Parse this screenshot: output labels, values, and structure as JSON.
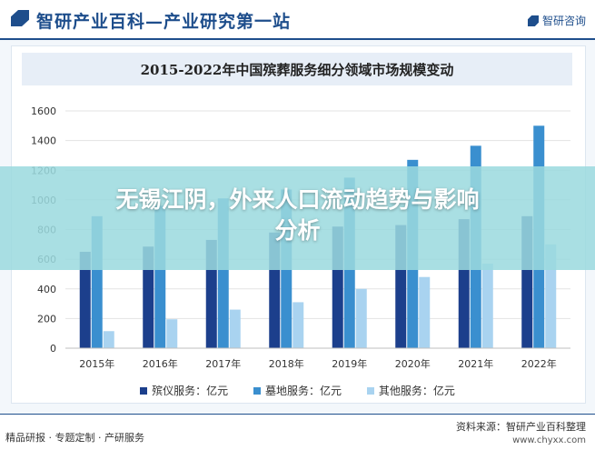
{
  "header": {
    "title": "智研产业百科—产业研究第一站",
    "brand": "智研咨询"
  },
  "overlay": {
    "headline_line1": "无锡江阴，外来人口流动趋势与影响",
    "headline_line2": "分析"
  },
  "footer": {
    "left": "精品研报 · 专题定制 · 产研服务",
    "source": "资料来源：智研产业百科整理",
    "url": "www.chyxx.com"
  },
  "chart_data": {
    "type": "bar",
    "title": "2015-2022年中国殡葬服务细分领域市场规模变动",
    "categories": [
      "2015年",
      "2016年",
      "2017年",
      "2018年",
      "2019年",
      "2020年",
      "2021年",
      "2022年"
    ],
    "series": [
      {
        "name": "殡仪服务：亿元",
        "color": "#1c3f8c",
        "values": [
          650,
          685,
          730,
          780,
          820,
          830,
          870,
          890
        ]
      },
      {
        "name": "墓地服务：亿元",
        "color": "#3a8fcf",
        "values": [
          890,
          960,
          1010,
          1070,
          1150,
          1270,
          1365,
          1500
        ]
      },
      {
        "name": "其他服务：亿元",
        "color": "#a9d3f0",
        "values": [
          115,
          195,
          260,
          310,
          400,
          480,
          570,
          700
        ]
      }
    ],
    "ylim": [
      0,
      1600
    ],
    "yticks": [
      "0",
      "200",
      "400",
      "600",
      "800",
      "1000",
      "1200",
      "1400",
      "1600"
    ],
    "grid": true,
    "legend_position": "bottom"
  }
}
